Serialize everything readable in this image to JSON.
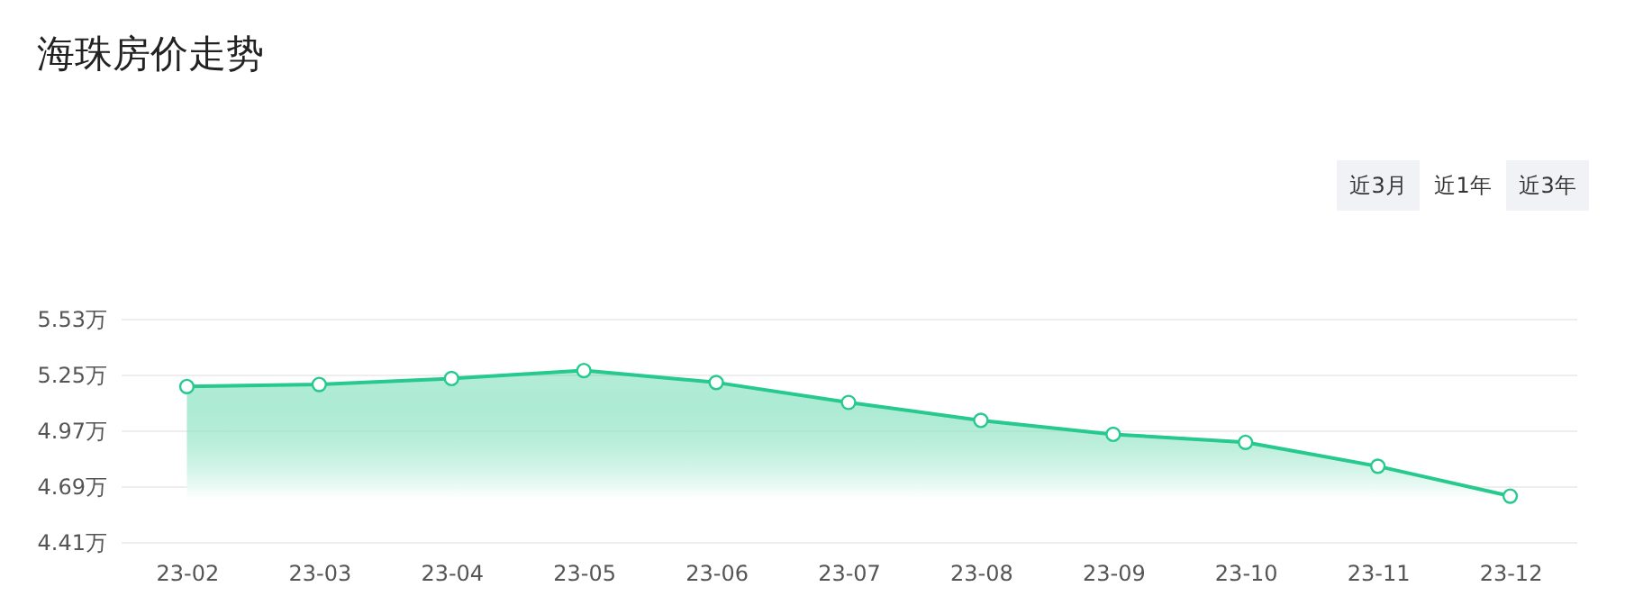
{
  "chart_data": {
    "type": "area",
    "title": "海珠房价走势",
    "categories": [
      "23-02",
      "23-03",
      "23-04",
      "23-05",
      "23-06",
      "23-07",
      "23-08",
      "23-09",
      "23-10",
      "23-11",
      "23-12"
    ],
    "series": [
      {
        "color": "#26c98e",
        "values": [
          5.19,
          5.2,
          5.23,
          5.27,
          5.21,
          5.11,
          5.02,
          4.95,
          4.91,
          4.79,
          4.64
        ]
      }
    ],
    "ylim": [
      4.41,
      5.53
    ],
    "yticks": [
      {
        "value": 4.41,
        "label": "4.41万"
      },
      {
        "value": 4.69,
        "label": "4.69万"
      },
      {
        "value": 4.97,
        "label": "4.97万"
      },
      {
        "value": 5.25,
        "label": "5.25万"
      },
      {
        "value": 5.53,
        "label": "5.53万"
      }
    ],
    "grid": "y",
    "marker": "circle",
    "line_style": "solid",
    "annotations": [
      "近3月",
      "近1年",
      "近3年"
    ]
  }
}
